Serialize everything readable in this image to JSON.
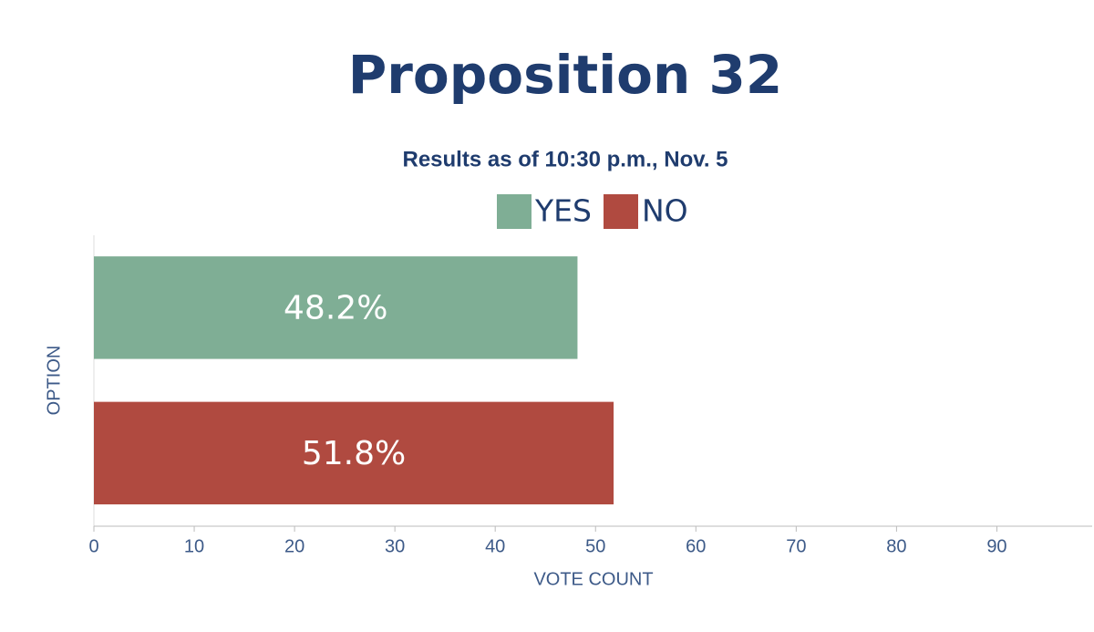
{
  "chart_data": {
    "type": "hbar",
    "title": "Proposition 32",
    "subtitle": "Results as of 10:30 p.m., Nov. 5",
    "series": [
      {
        "name": "YES",
        "color": "#7fae95",
        "values": [
          48.2
        ],
        "value_labels": [
          "48.2%"
        ]
      },
      {
        "name": "NO",
        "color": "#b04a40",
        "values": [
          51.8
        ],
        "value_labels": [
          "51.8%"
        ]
      }
    ],
    "xlim": [
      0,
      99.5
    ],
    "xticks": [
      0,
      10,
      20,
      30,
      40,
      50,
      60,
      70,
      80,
      90
    ],
    "x_label": "VOTE COUNT",
    "y_label": "OPTION",
    "grid": false,
    "legend": "top"
  }
}
